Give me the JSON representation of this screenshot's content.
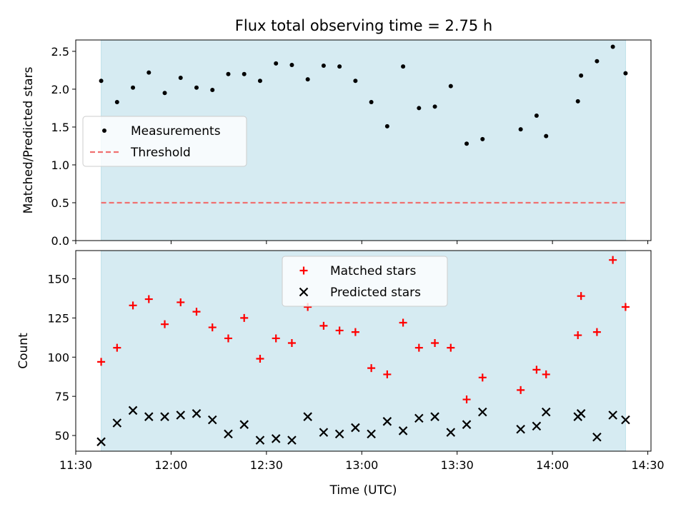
{
  "chart_data": [
    {
      "type": "scatter",
      "title": "Flux total observing time = 2.75 h",
      "xlabel": "",
      "ylabel": "Matched/Predicted stars",
      "ylim": [
        0,
        2.65
      ],
      "yticks": [
        0.0,
        0.5,
        1.0,
        1.5,
        2.0,
        2.5
      ],
      "ytick_labels": [
        "0.0",
        "0.5",
        "1.0",
        "1.5",
        "2.0",
        "2.5"
      ],
      "xlim": [
        "11:30",
        "14:31"
      ],
      "shaded_span": [
        "11:38",
        "14:23"
      ],
      "shade_color": "#add8e6",
      "threshold": 0.5,
      "legend_position": "center-left",
      "series": [
        {
          "name": "Measurements",
          "marker": "dot",
          "color": "#000000",
          "x": [
            "11:38",
            "11:43",
            "11:48",
            "11:53",
            "11:58",
            "12:03",
            "12:08",
            "12:13",
            "12:18",
            "12:23",
            "12:28",
            "12:33",
            "12:38",
            "12:43",
            "12:48",
            "12:53",
            "12:58",
            "13:03",
            "13:08",
            "13:13",
            "13:18",
            "13:23",
            "13:28",
            "13:33",
            "13:38",
            "13:50",
            "13:55",
            "13:58",
            "14:08",
            "14:09",
            "14:14",
            "14:19",
            "14:23"
          ],
          "y": [
            2.11,
            1.83,
            2.02,
            2.22,
            1.95,
            2.15,
            2.02,
            1.99,
            2.2,
            2.2,
            2.11,
            2.34,
            2.32,
            2.13,
            2.31,
            2.3,
            2.11,
            1.83,
            1.51,
            2.3,
            1.75,
            1.77,
            2.04,
            1.28,
            1.34,
            1.47,
            1.65,
            1.38,
            1.84,
            2.18,
            2.37,
            2.56,
            2.21
          ]
        },
        {
          "name": "Threshold",
          "style": "dashed",
          "color": "#f07070",
          "y": 0.5
        }
      ]
    },
    {
      "type": "scatter",
      "title": "",
      "xlabel": "Time (UTC)",
      "ylabel": "Count",
      "ylim": [
        40,
        168
      ],
      "yticks": [
        50,
        75,
        100,
        125,
        150
      ],
      "ytick_labels": [
        "50",
        "75",
        "100",
        "125",
        "150"
      ],
      "xlim": [
        "11:30",
        "14:31"
      ],
      "xticks": [
        "11:30",
        "12:00",
        "12:30",
        "13:00",
        "13:30",
        "14:00",
        "14:30"
      ],
      "xtick_labels": [
        "11:30",
        "12:00",
        "12:30",
        "13:00",
        "13:30",
        "14:00",
        "14:30"
      ],
      "shaded_span": [
        "11:38",
        "14:23"
      ],
      "shade_color": "#add8e6",
      "legend_position": "top-center",
      "series": [
        {
          "name": "Matched stars",
          "marker": "plus",
          "color": "#ff0000",
          "x": [
            "11:38",
            "11:43",
            "11:48",
            "11:53",
            "11:58",
            "12:03",
            "12:08",
            "12:13",
            "12:18",
            "12:23",
            "12:28",
            "12:33",
            "12:38",
            "12:43",
            "12:48",
            "12:53",
            "12:58",
            "13:03",
            "13:08",
            "13:13",
            "13:18",
            "13:23",
            "13:28",
            "13:33",
            "13:38",
            "13:50",
            "13:55",
            "13:58",
            "14:08",
            "14:09",
            "14:14",
            "14:19",
            "14:23"
          ],
          "y": [
            97,
            106,
            133,
            137,
            121,
            135,
            129,
            119,
            112,
            125,
            99,
            112,
            109,
            132,
            120,
            117,
            116,
            93,
            89,
            122,
            106,
            109,
            106,
            73,
            87,
            79,
            92,
            89,
            114,
            139,
            116,
            162,
            132
          ]
        },
        {
          "name": "Predicted stars",
          "marker": "x",
          "color": "#000000",
          "x": [
            "11:38",
            "11:43",
            "11:48",
            "11:53",
            "11:58",
            "12:03",
            "12:08",
            "12:13",
            "12:18",
            "12:23",
            "12:28",
            "12:33",
            "12:38",
            "12:43",
            "12:48",
            "12:53",
            "12:58",
            "13:03",
            "13:08",
            "13:13",
            "13:18",
            "13:23",
            "13:28",
            "13:33",
            "13:38",
            "13:50",
            "13:55",
            "13:58",
            "14:08",
            "14:09",
            "14:14",
            "14:19",
            "14:23"
          ],
          "y": [
            46,
            58,
            66,
            62,
            62,
            63,
            64,
            60,
            51,
            57,
            47,
            48,
            47,
            62,
            52,
            51,
            55,
            51,
            59,
            53,
            61,
            62,
            52,
            57,
            65,
            54,
            56,
            65,
            62,
            64,
            49,
            63,
            60
          ]
        }
      ]
    }
  ]
}
